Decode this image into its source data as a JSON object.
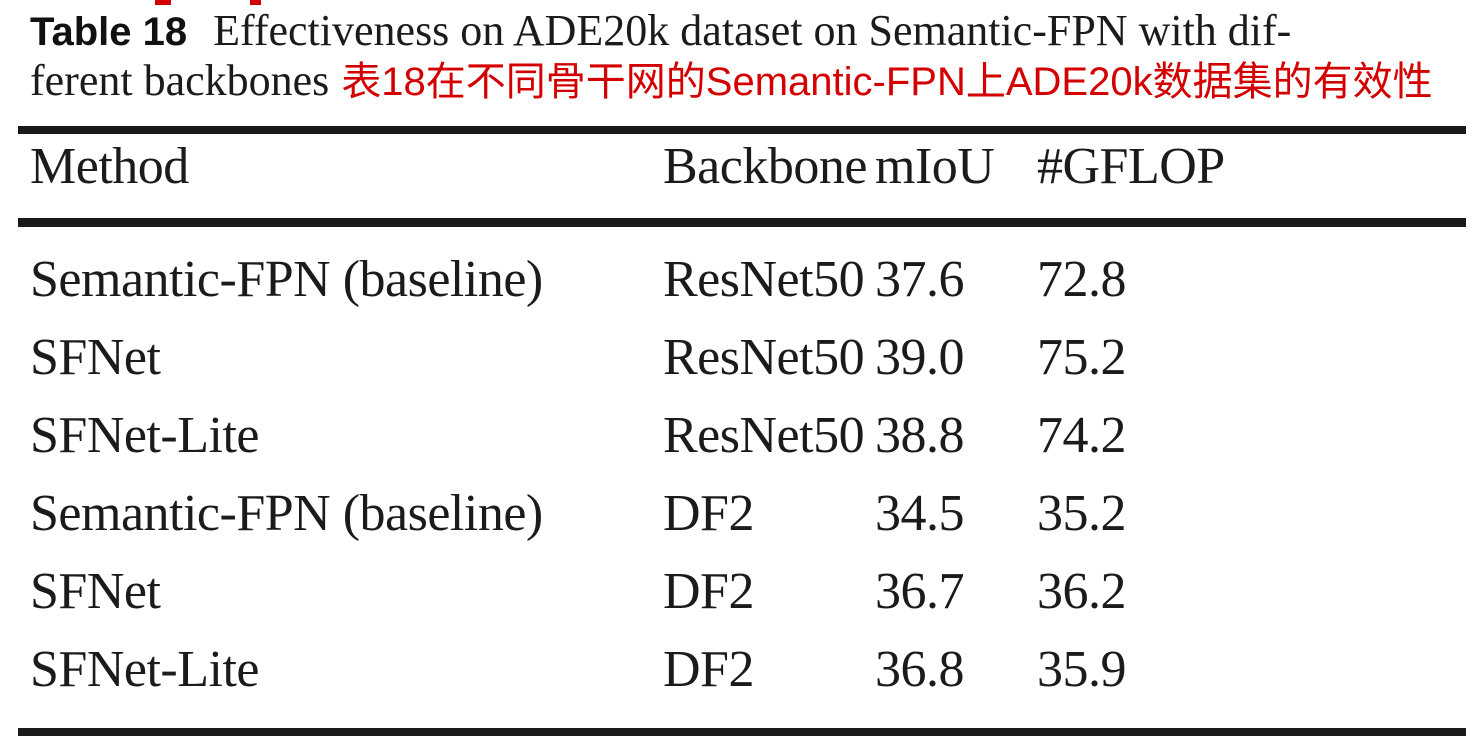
{
  "caption": {
    "label": "Table 18",
    "line1": "Effectiveness on ADE20k dataset on Semantic-FPN with dif-",
    "line2": "ferent backbones",
    "translation_zh": "表18在不同骨干网的Semantic-FPN上ADE20k数据集的有效性",
    "translation_color": "#d40000"
  },
  "chart_data": {
    "type": "table",
    "title": "Table 18 Effectiveness on ADE20k dataset on Semantic-FPN with different backbones",
    "columns": [
      "Method",
      "Backbone",
      "mIoU",
      "#GFLOP"
    ],
    "rows": [
      [
        "Semantic-FPN (baseline)",
        "ResNet50",
        "37.6",
        "72.8"
      ],
      [
        "SFNet",
        "ResNet50",
        "39.0",
        "75.2"
      ],
      [
        "SFNet-Lite",
        "ResNet50",
        "38.8",
        "74.2"
      ],
      [
        "Semantic-FPN (baseline)",
        "DF2",
        "34.5",
        "35.2"
      ],
      [
        "SFNet",
        "DF2",
        "36.7",
        "36.2"
      ],
      [
        "SFNet-Lite",
        "DF2",
        "36.8",
        "35.9"
      ]
    ]
  }
}
